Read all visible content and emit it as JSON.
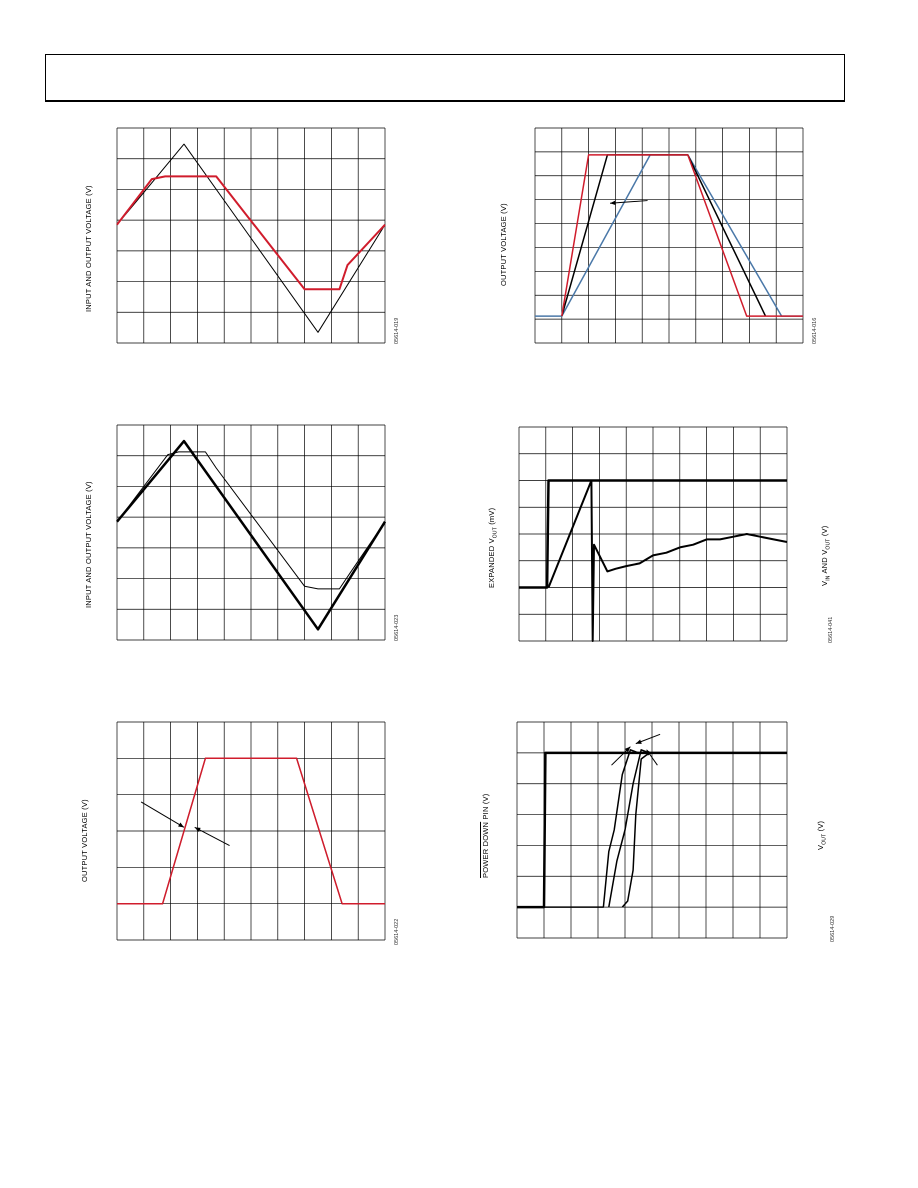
{
  "colors": {
    "red": "#d01c2c",
    "blue": "#4a78a8",
    "black": "#000000",
    "grid": "#000000"
  },
  "figures": [
    {
      "id": "fig1",
      "ylabel": "INPUT AND OUTPUT VOLTAGE (V)",
      "fignum": "05614-019",
      "chart_data": {
        "type": "line",
        "grid": {
          "cols": 10,
          "rows": 7
        },
        "series": [
          {
            "color": "black",
            "width": 1,
            "points": [
              [
                0,
                3.4
              ],
              [
                2.5,
                6.4
              ],
              [
                7.5,
                -0.6
              ],
              [
                10,
                3.4
              ]
            ]
          },
          {
            "color": "red",
            "width": 2,
            "points": [
              [
                0,
                3.4
              ],
              [
                1.3,
                5.1
              ],
              [
                1.8,
                5.2
              ],
              [
                3.7,
                5.2
              ],
              [
                7.0,
                1.0
              ],
              [
                8.3,
                1.0
              ],
              [
                8.6,
                1.9
              ],
              [
                10,
                3.4
              ]
            ]
          }
        ],
        "ylim": [
          -1,
          7
        ]
      }
    },
    {
      "id": "fig2",
      "ylabel": "OUTPUT VOLTAGE (V)",
      "fignum": "05614-016",
      "chart_data": {
        "type": "line",
        "grid": {
          "cols": 10,
          "rows": 9
        },
        "series": [
          {
            "color": "blue",
            "width": 1.5,
            "points": [
              [
                0,
                0.0
              ],
              [
                0.4,
                0.0
              ],
              [
                1.0,
                0.0
              ],
              [
                4.3,
                6.0
              ],
              [
                5.7,
                6.0
              ],
              [
                9.2,
                0.0
              ],
              [
                10,
                0.0
              ]
            ]
          },
          {
            "color": "black",
            "width": 1.5,
            "points": [
              [
                1.0,
                0.0
              ],
              [
                2.7,
                6.0
              ],
              [
                5.7,
                6.0
              ],
              [
                8.6,
                0.0
              ]
            ]
          },
          {
            "color": "red",
            "width": 1.5,
            "points": [
              [
                1.0,
                0.0
              ],
              [
                2.0,
                6.0
              ],
              [
                5.7,
                6.0
              ],
              [
                7.9,
                0.0
              ],
              [
                10,
                0.0
              ]
            ]
          }
        ],
        "ylim": [
          -1,
          7
        ],
        "annotations": [
          {
            "type": "arrow",
            "from": [
              4.2,
              4.3
            ],
            "to": [
              2.8,
              4.2
            ]
          }
        ]
      }
    },
    {
      "id": "fig3",
      "ylabel": "INPUT AND OUTPUT VOLTAGE (V)",
      "fignum": "05614-023",
      "chart_data": {
        "type": "line",
        "grid": {
          "cols": 10,
          "rows": 7
        },
        "series": [
          {
            "color": "black",
            "width": 2.5,
            "points": [
              [
                0,
                3.4
              ],
              [
                2.5,
                6.4
              ],
              [
                7.5,
                -0.6
              ],
              [
                10,
                3.4
              ]
            ]
          },
          {
            "color": "black",
            "width": 1,
            "points": [
              [
                0,
                3.4
              ],
              [
                1.9,
                5.9
              ],
              [
                2.3,
                6.0
              ],
              [
                3.3,
                6.0
              ],
              [
                3.7,
                5.4
              ],
              [
                7.0,
                1.0
              ],
              [
                7.5,
                0.9
              ],
              [
                8.3,
                0.9
              ],
              [
                8.7,
                1.5
              ],
              [
                10,
                3.4
              ]
            ]
          }
        ],
        "ylim": [
          -1,
          7
        ]
      }
    },
    {
      "id": "fig4",
      "ylabel": "EXPANDED V",
      "ylabel_sub": "OUT",
      "ylabel_tail": " (mV)",
      "ylabel_right": "V",
      "ylabel_right_sub1": "IN",
      "ylabel_right_mid": " AND V",
      "ylabel_right_sub2": "OUT",
      "ylabel_right_tail": " (V)",
      "fignum": "05614-041",
      "chart_data": {
        "type": "line",
        "grid": {
          "cols": 10,
          "rows": 8
        },
        "series": [
          {
            "color": "black",
            "width": 2.5,
            "points": [
              [
                0,
                2.0
              ],
              [
                1.05,
                2.0
              ],
              [
                1.1,
                6.0
              ],
              [
                10,
                6.0
              ]
            ]
          },
          {
            "color": "black",
            "width": 2,
            "points": [
              [
                1.1,
                2.0
              ],
              [
                2.7,
                6.0
              ],
              [
                2.75,
                0.0
              ],
              [
                2.8,
                3.6
              ],
              [
                3.0,
                3.2
              ],
              [
                3.3,
                2.6
              ],
              [
                3.6,
                2.7
              ],
              [
                4.0,
                2.8
              ],
              [
                4.5,
                2.9
              ],
              [
                5.0,
                3.2
              ],
              [
                5.5,
                3.3
              ],
              [
                6.0,
                3.5
              ],
              [
                6.5,
                3.6
              ],
              [
                7.0,
                3.8
              ],
              [
                7.5,
                3.8
              ],
              [
                8.0,
                3.9
              ],
              [
                8.5,
                4.0
              ],
              [
                9.0,
                3.9
              ],
              [
                9.5,
                3.8
              ],
              [
                10,
                3.7
              ]
            ]
          }
        ],
        "ylim": [
          0,
          8
        ]
      }
    },
    {
      "id": "fig5",
      "ylabel": "OUTPUT VOLTAGE (V)",
      "fignum": "05614-022",
      "chart_data": {
        "type": "line",
        "grid": {
          "cols": 10,
          "rows": 6
        },
        "series": [
          {
            "color": "black",
            "width": 1,
            "points": [
              [
                0,
                1.0
              ],
              [
                1.7,
                1.0
              ],
              [
                3.3,
                5.0
              ],
              [
                6.7,
                5.0
              ],
              [
                8.4,
                1.0
              ],
              [
                10,
                1.0
              ]
            ]
          },
          {
            "color": "red",
            "width": 1.5,
            "points": [
              [
                0,
                1.0
              ],
              [
                1.7,
                1.0
              ],
              [
                3.3,
                5.0
              ],
              [
                6.7,
                5.0
              ],
              [
                8.4,
                1.0
              ],
              [
                10,
                1.0
              ]
            ]
          }
        ],
        "ylim": [
          0,
          6
        ],
        "annotations": [
          {
            "type": "arrow",
            "from": [
              0.9,
              3.8
            ],
            "to": [
              2.5,
              3.1
            ]
          },
          {
            "type": "arrow",
            "from": [
              4.2,
              2.6
            ],
            "to": [
              2.9,
              3.1
            ]
          }
        ]
      }
    },
    {
      "id": "fig6",
      "ylabel": "POWER DOWN PIN (V)",
      "ylabel_overline": "POWER DOWN",
      "ylabel_right": "V",
      "ylabel_right_sub1": "OUT",
      "ylabel_right_tail": " (V)",
      "fignum": "05614-029",
      "chart_data": {
        "type": "line",
        "grid": {
          "cols": 10,
          "rows": 7
        },
        "series": [
          {
            "color": "black",
            "width": 2.5,
            "points": [
              [
                0,
                0.0
              ],
              [
                1.0,
                0.0
              ],
              [
                1.05,
                5.0
              ],
              [
                10,
                5.0
              ]
            ]
          },
          {
            "color": "black",
            "width": 1.5,
            "points": [
              [
                0,
                0.0
              ],
              [
                3.2,
                0.0
              ],
              [
                3.4,
                1.8
              ],
              [
                3.6,
                2.5
              ],
              [
                3.9,
                4.3
              ],
              [
                4.2,
                5.1
              ],
              [
                4.5,
                5.0
              ]
            ]
          },
          {
            "color": "black",
            "width": 1.5,
            "points": [
              [
                3.4,
                0.0
              ],
              [
                3.7,
                1.5
              ],
              [
                4.0,
                2.5
              ],
              [
                4.3,
                4.0
              ],
              [
                4.6,
                5.1
              ],
              [
                4.9,
                5.0
              ]
            ]
          },
          {
            "color": "black",
            "width": 1.5,
            "points": [
              [
                3.9,
                0.0
              ],
              [
                4.1,
                0.2
              ],
              [
                4.3,
                1.2
              ],
              [
                4.4,
                3.0
              ],
              [
                4.6,
                4.8
              ],
              [
                4.9,
                5.0
              ],
              [
                10,
                5.0
              ]
            ]
          }
        ],
        "ylim": [
          -1,
          6
        ],
        "annotations": [
          {
            "type": "arrow",
            "from": [
              5.3,
              5.6
            ],
            "to": [
              4.4,
              5.3
            ]
          },
          {
            "type": "arrow",
            "from": [
              3.5,
              4.6
            ],
            "to": [
              4.2,
              5.2
            ]
          },
          {
            "type": "arrow",
            "from": [
              5.2,
              4.6
            ],
            "to": [
              4.8,
              5.1
            ]
          }
        ]
      }
    }
  ]
}
